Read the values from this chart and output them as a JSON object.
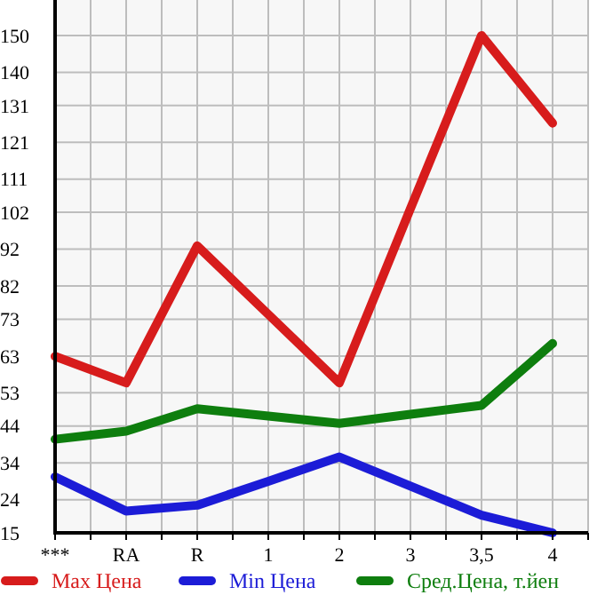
{
  "chart_data": {
    "type": "line",
    "categories": [
      "***",
      "RA",
      "R",
      "1",
      "2",
      "3",
      "3,5",
      "4"
    ],
    "series": [
      {
        "name": "Max Цена",
        "color": "#d71c1c",
        "values": [
          62.9,
          55.7,
          92.9,
          74.3,
          55.7,
          103,
          150,
          126.2
        ]
      },
      {
        "name": "Min Цена",
        "color": "#1c1cd7",
        "values": [
          30.2,
          20.9,
          22.5,
          29,
          35.6,
          27.7,
          19.8,
          15
        ]
      },
      {
        "name": "Сред.Цена, т.йен",
        "color": "#0e7e0e",
        "values": [
          40.4,
          42.6,
          48.7,
          46.7,
          44.7,
          47.2,
          49.6,
          66.4
        ]
      }
    ],
    "ylim": [
      15,
      150
    ],
    "yticks": [
      15,
      24,
      34,
      44,
      53,
      63,
      73,
      82,
      92,
      102,
      111,
      121,
      131,
      140,
      150
    ],
    "grid": true,
    "legend": "bottom",
    "line_style": "solid",
    "marker": "none"
  }
}
